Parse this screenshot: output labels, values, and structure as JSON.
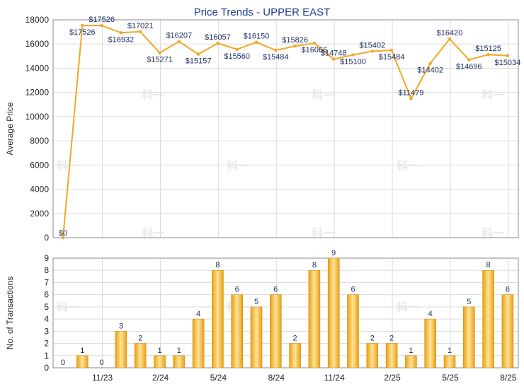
{
  "colors": {
    "line": "#f5a623",
    "bar_light": "#ffe39a",
    "bar_dark": "#e8a010",
    "title": "#1f3a93"
  },
  "watermark": "科一",
  "chart_data": [
    {
      "type": "line",
      "title": "Price Trends - UPPER EAST",
      "ylabel": "Average Price",
      "ylim": [
        0,
        18000
      ],
      "yticks": [
        "0",
        "2000",
        "4000",
        "6000",
        "8000",
        "10000",
        "12000",
        "14000",
        "16000",
        "18000"
      ],
      "grid": true,
      "values": [
        0,
        17526,
        17526,
        16932,
        17021,
        15271,
        16207,
        15157,
        16057,
        15560,
        16150,
        15484,
        15826,
        16066,
        14748,
        15100,
        15402,
        15484,
        11479,
        14402,
        16420,
        14696,
        15125,
        15034
      ],
      "labels": [
        "$0",
        "$17526",
        "$17526",
        "$16932",
        "$17021",
        "$15271",
        "$16207",
        "$15157",
        "$16057",
        "$15560",
        "$16150",
        "$15484",
        "$15826",
        "$16066",
        "$14748",
        "$15100",
        "$15402",
        "$15484",
        "$11479",
        "$14402",
        "$16420",
        "$14696",
        "$15125",
        "$15034"
      ]
    },
    {
      "type": "bar",
      "ylabel": "No. of Transactions",
      "ylim": [
        0,
        9
      ],
      "yticks": [
        "0",
        "1",
        "2",
        "3",
        "4",
        "5",
        "6",
        "7",
        "8",
        "9"
      ],
      "grid": true,
      "values": [
        0,
        1,
        0,
        3,
        2,
        1,
        1,
        4,
        8,
        6,
        5,
        6,
        2,
        8,
        9,
        6,
        2,
        2,
        1,
        4,
        1,
        5,
        8,
        6
      ],
      "xticks": [
        {
          "index": 2,
          "label": "11/23"
        },
        {
          "index": 5,
          "label": "2/24"
        },
        {
          "index": 8,
          "label": "5/24"
        },
        {
          "index": 11,
          "label": "8/24"
        },
        {
          "index": 14,
          "label": "11/24"
        },
        {
          "index": 17,
          "label": "2/25"
        },
        {
          "index": 20,
          "label": "5/25"
        },
        {
          "index": 23,
          "label": "8/25"
        }
      ]
    }
  ]
}
